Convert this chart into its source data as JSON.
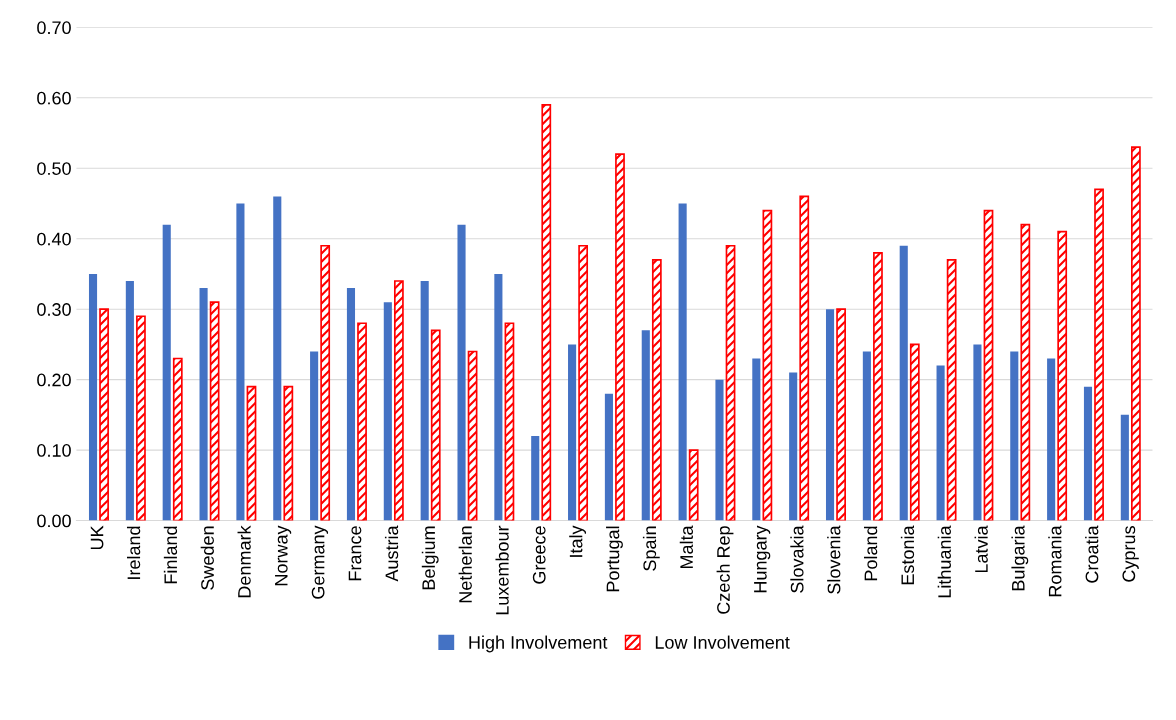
{
  "chart_data": {
    "type": "bar",
    "categories": [
      "UK",
      "Ireland",
      "Finland",
      "Sweden",
      "Denmark",
      "Norway",
      "Germany",
      "France",
      "Austria",
      "Belgium",
      "Netherlan",
      "Luxembour",
      "Greece",
      "Italy",
      "Portugal",
      "Spain",
      "Malta",
      "Czech Rep",
      "Hungary",
      "Slovakia",
      "Slovenia",
      "Poland",
      "Estonia",
      "Lithuania",
      "Latvia",
      "Bulgaria",
      "Romania",
      "Croatia",
      "Cyprus"
    ],
    "series": [
      {
        "name": "High Involvement",
        "color": "#4472c4",
        "values": [
          0.35,
          0.34,
          0.42,
          0.33,
          0.45,
          0.46,
          0.24,
          0.33,
          0.31,
          0.34,
          0.42,
          0.35,
          0.12,
          0.25,
          0.18,
          0.27,
          0.45,
          0.2,
          0.23,
          0.21,
          0.3,
          0.24,
          0.39,
          0.22,
          0.25,
          0.24,
          0.23,
          0.19,
          0.15
        ]
      },
      {
        "name": "Low Involvement",
        "color": "#ff0000",
        "values": [
          0.3,
          0.29,
          0.23,
          0.31,
          0.19,
          0.19,
          0.39,
          0.28,
          0.34,
          0.27,
          0.24,
          0.28,
          0.59,
          0.39,
          0.52,
          0.37,
          0.1,
          0.39,
          0.44,
          0.46,
          0.3,
          0.38,
          0.25,
          0.37,
          0.44,
          0.42,
          0.41,
          0.47,
          0.53
        ]
      }
    ],
    "ylim": [
      0,
      0.7
    ],
    "yticks": [
      {
        "value": 0,
        "label": "0.00"
      },
      {
        "value": 0.1,
        "label": "0.10"
      },
      {
        "value": 0.2,
        "label": "0.20"
      },
      {
        "value": 0.3,
        "label": "0.30"
      },
      {
        "value": 0.4,
        "label": "0.40"
      },
      {
        "value": 0.5,
        "label": "0.50"
      },
      {
        "value": 0.6,
        "label": "0.60"
      },
      {
        "value": 0.7,
        "label": "0.70"
      }
    ],
    "grid": "y",
    "legend": "bottom"
  }
}
